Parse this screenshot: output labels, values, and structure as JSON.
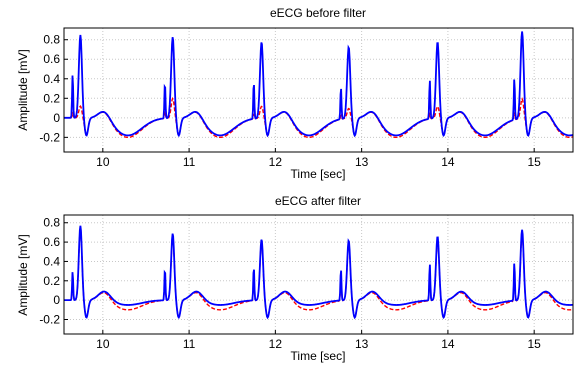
{
  "chart_data": [
    {
      "type": "line",
      "title": "eECG before filter",
      "xlabel": "Time [sec]",
      "ylabel": "Amplitude [mV]",
      "xlim": [
        9.55,
        15.45
      ],
      "ylim": [
        -0.35,
        0.92
      ],
      "xticks": [
        10,
        11,
        12,
        13,
        14,
        15
      ],
      "yticks": [
        -0.2,
        0,
        0.2,
        0.4,
        0.6,
        0.8
      ],
      "grid": true,
      "beats": [
        {
          "t": 9.74,
          "blue_r": 0.85,
          "red_r": 0.12,
          "blue_pace": 0.45,
          "red_pace": 0.05
        },
        {
          "t": 10.81,
          "blue_r": 0.83,
          "red_r": 0.2,
          "blue_pace": 0.37,
          "red_pace": 0.08
        },
        {
          "t": 11.84,
          "blue_r": 0.78,
          "red_r": 0.12,
          "blue_pace": 0.38,
          "red_pace": 0.05
        },
        {
          "t": 12.85,
          "blue_r": 0.73,
          "red_r": 0.1,
          "blue_pace": 0.33,
          "red_pace": 0.04
        },
        {
          "t": 13.88,
          "blue_r": 0.78,
          "red_r": 0.12,
          "blue_pace": 0.4,
          "red_pace": 0.05
        },
        {
          "t": 14.86,
          "blue_r": 0.89,
          "red_r": 0.2,
          "blue_pace": 0.43,
          "red_pace": 0.08
        }
      ],
      "series": [
        {
          "style": "solid",
          "color": "#0000ff",
          "baseline_low": -0.18
        },
        {
          "style": "dashed",
          "color": "#ff0000",
          "baseline_low": -0.2
        }
      ]
    },
    {
      "type": "line",
      "title": "eECG after filter",
      "xlabel": "Time [sec]",
      "ylabel": "Amplitude [mV]",
      "xlim": [
        9.55,
        15.45
      ],
      "ylim": [
        -0.35,
        0.88
      ],
      "xticks": [
        10,
        11,
        12,
        13,
        14,
        15
      ],
      "yticks": [
        -0.2,
        0,
        0.2,
        0.4,
        0.6,
        0.8
      ],
      "grid": true,
      "beats": [
        {
          "t": 9.74,
          "blue_r": 0.77,
          "red_r": 0.75,
          "blue_pace": 0.3,
          "red_pace": 0.22
        },
        {
          "t": 10.81,
          "blue_r": 0.69,
          "red_r": 0.67,
          "blue_pace": 0.33,
          "red_pace": 0.25
        },
        {
          "t": 11.84,
          "blue_r": 0.63,
          "red_r": 0.62,
          "blue_pace": 0.35,
          "red_pace": 0.28
        },
        {
          "t": 12.85,
          "blue_r": 0.62,
          "red_r": 0.6,
          "blue_pace": 0.33,
          "red_pace": 0.26
        },
        {
          "t": 13.88,
          "blue_r": 0.66,
          "red_r": 0.64,
          "blue_pace": 0.38,
          "red_pace": 0.3
        },
        {
          "t": 14.86,
          "blue_r": 0.73,
          "red_r": 0.7,
          "blue_pace": 0.4,
          "red_pace": 0.32
        }
      ],
      "series": [
        {
          "style": "solid",
          "color": "#0000ff",
          "baseline_low": -0.05
        },
        {
          "style": "dashed",
          "color": "#ff0000",
          "baseline_low": -0.1
        }
      ]
    }
  ]
}
